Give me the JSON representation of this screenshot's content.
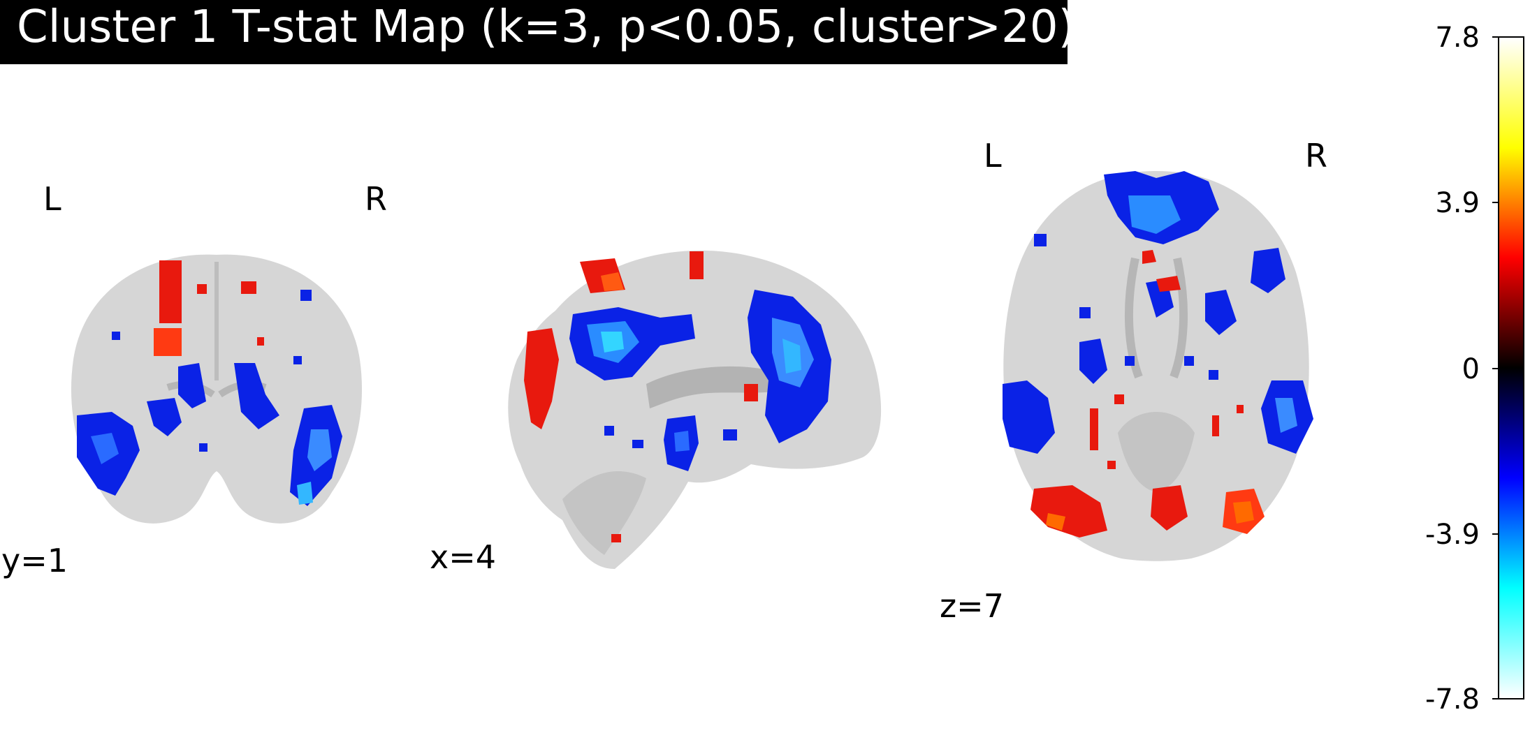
{
  "figure": {
    "title": "Cluster 1 T-stat Map (k=3, p<0.05, cluster>20)",
    "views": [
      {
        "name": "coronal",
        "coord_label": "y=1",
        "left_label": "L",
        "right_label": "R"
      },
      {
        "name": "sagittal",
        "coord_label": "x=4"
      },
      {
        "name": "axial",
        "coord_label": "z=7",
        "left_label": "L",
        "right_label": "R"
      }
    ]
  },
  "colorbar": {
    "ticks": [
      "7.8",
      "3.9",
      "0",
      "-3.9",
      "-7.8"
    ],
    "colors": [
      "#ffffff",
      "#ffff00",
      "#ff0000",
      "#000000",
      "#0000ff",
      "#00ffff",
      "#ffffff"
    ],
    "range": [
      -7.8,
      7.8
    ]
  },
  "colors": {
    "brain": "#d6d6d6",
    "positive": "#e8190e",
    "positive_hot": "#ff6a00",
    "negative": "#0a22e6",
    "negative_bright": "#33b7ff"
  }
}
